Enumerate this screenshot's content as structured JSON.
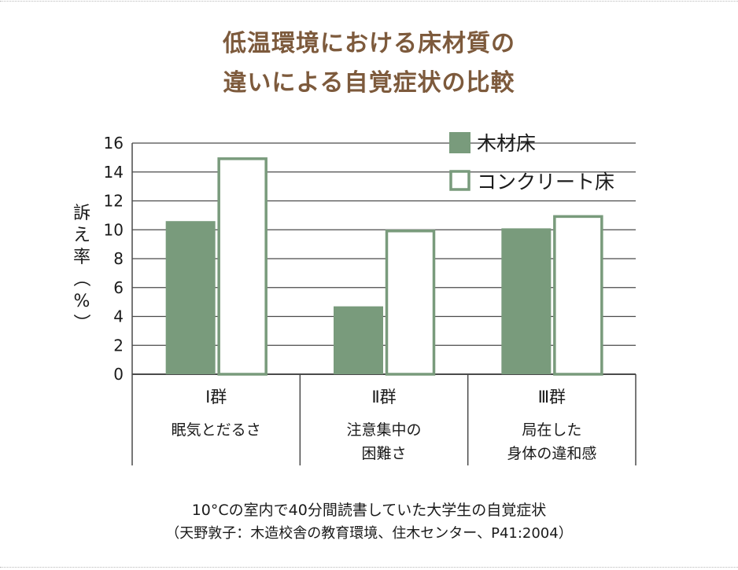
{
  "title_line1": "低温環境における床材質の",
  "title_line2": "違いによる自覚症状の比較",
  "caption_line1": "10°Cの室内で40分間読書していた大学生の自覚症状",
  "caption_line2": "（天野敦子：木造校舎の教育環境、住木センター、P41:2004）",
  "colors": {
    "title": "#7d5a3c",
    "wood": "#799b7c",
    "concrete_border": "#799b7c",
    "grid": "#4a4a4a"
  },
  "chart_data": {
    "type": "bar",
    "ylabel": "訴え率（%）",
    "ylim": [
      0,
      16
    ],
    "yticks": [
      "0",
      "2",
      "4",
      "6",
      "8",
      "10",
      "12",
      "14",
      "16"
    ],
    "grid": true,
    "legend_position": "top-right",
    "categories": [
      {
        "group": "Ⅰ群",
        "desc": [
          "眠気とだるさ"
        ]
      },
      {
        "group": "Ⅱ群",
        "desc": [
          "注意集中の",
          "困難さ"
        ]
      },
      {
        "group": "Ⅲ群",
        "desc": [
          "局在した",
          "身体の違和感"
        ]
      }
    ],
    "series": [
      {
        "name": "木材床",
        "values": [
          10.6,
          4.7,
          10.1
        ]
      },
      {
        "name": "コンクリート床",
        "values": [
          15.0,
          10.0,
          11.0
        ]
      }
    ]
  }
}
